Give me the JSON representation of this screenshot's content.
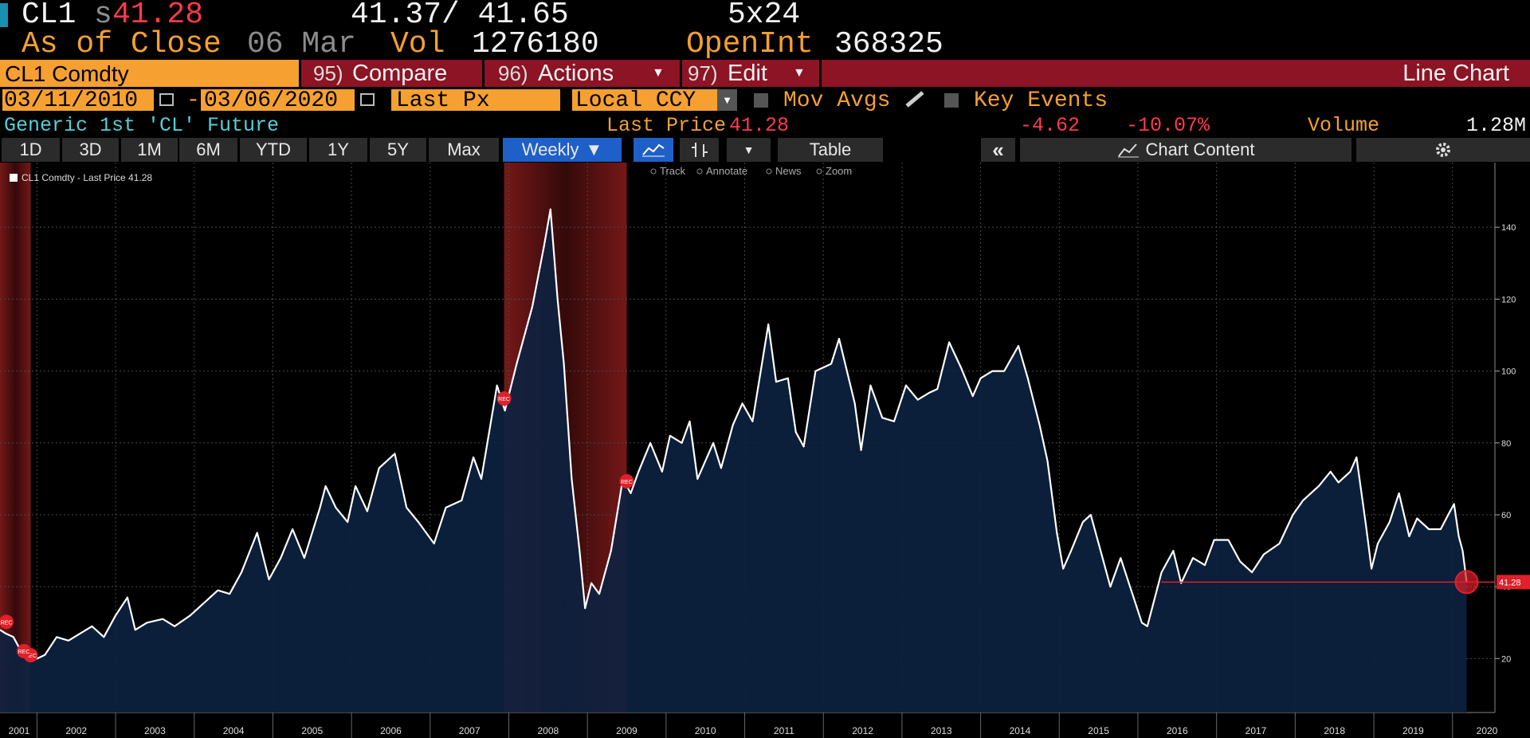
{
  "header": {
    "ticker": "CL1",
    "price_prefix": "s",
    "price": "41.28",
    "bid_ask": "41.37/ 41.65",
    "size": "5x24",
    "as_of": "As of Close",
    "date": "06 Mar",
    "vol_label": "Vol",
    "vol": "1276180",
    "oi_label": "OpenInt",
    "oi": "368325"
  },
  "toolbar": {
    "security": "CL1 Comdty",
    "buttons": [
      {
        "num": "95)",
        "label": "Compare"
      },
      {
        "num": "96)",
        "label": "Actions"
      },
      {
        "num": "97)",
        "label": "Edit"
      }
    ],
    "chart_type": "Line Chart"
  },
  "controls": {
    "start_date": "03/11/2010",
    "dash": "-",
    "end_date": "03/06/2020",
    "field": "Last Px",
    "currency": "Local CCY",
    "mov_avgs": "Mov Avgs",
    "key_events": "Key Events"
  },
  "info": {
    "description": "Generic 1st 'CL' Future",
    "last_price_label": "Last Price",
    "last_price": "41.28",
    "change": "-4.62",
    "change_pct": "-10.07%",
    "volume_label": "Volume",
    "volume": "1.28M"
  },
  "periods": [
    "1D",
    "3D",
    "1M",
    "6M",
    "YTD",
    "1Y",
    "5Y",
    "Max"
  ],
  "frequency": "Weekly",
  "table": "Table",
  "chart_content": "Chart Content",
  "chart_tools": [
    "Track",
    "Annotate",
    "News",
    "Zoom"
  ],
  "chart_data": {
    "type": "area-line",
    "xlim": [
      2001.53,
      2020.54
    ],
    "ylim": [
      5,
      158
    ],
    "xticks": [
      2001,
      2002,
      2003,
      2004,
      2005,
      2006,
      2007,
      2008,
      2009,
      2010,
      2011,
      2012,
      2013,
      2014,
      2015,
      2016,
      2017,
      2018,
      2019,
      2020
    ],
    "yticks": [
      20,
      40,
      60,
      80,
      100,
      120,
      140
    ],
    "grid": true,
    "area_color": "#0c2140",
    "recession_label": "REC",
    "recessions": [
      [
        2001.2,
        2001.92
      ],
      [
        2007.94,
        2009.5
      ]
    ],
    "reference_line": {
      "from": 2016.3,
      "value": 41.28,
      "color": "#e0202a"
    },
    "series": [
      {
        "name": "CL1 Comdty - Last Price 41.28",
        "color": "#ffffff",
        "x": [
          2001.53,
          2001.6,
          2001.7,
          2001.8,
          2001.9,
          2002.0,
          2002.1,
          2002.25,
          2002.4,
          2002.55,
          2002.7,
          2002.85,
          2003.0,
          2003.15,
          2003.25,
          2003.4,
          2003.6,
          2003.75,
          2003.95,
          2004.1,
          2004.3,
          2004.45,
          2004.6,
          2004.8,
          2004.95,
          2005.1,
          2005.25,
          2005.4,
          2005.6,
          2005.67,
          2005.8,
          2005.95,
          2006.05,
          2006.2,
          2006.35,
          2006.55,
          2006.7,
          2006.85,
          2007.05,
          2007.2,
          2007.4,
          2007.55,
          2007.65,
          2007.85,
          2007.95,
          2008.1,
          2008.3,
          2008.45,
          2008.53,
          2008.62,
          2008.7,
          2008.8,
          2008.9,
          2008.97,
          2009.05,
          2009.15,
          2009.3,
          2009.45,
          2009.55,
          2009.65,
          2009.8,
          2009.95,
          2010.05,
          2010.2,
          2010.3,
          2010.4,
          2010.6,
          2010.7,
          2010.85,
          2010.97,
          2011.1,
          2011.3,
          2011.4,
          2011.55,
          2011.65,
          2011.75,
          2011.9,
          2012.1,
          2012.2,
          2012.4,
          2012.48,
          2012.6,
          2012.75,
          2012.9,
          2013.05,
          2013.2,
          2013.35,
          2013.45,
          2013.6,
          2013.75,
          2013.9,
          2014.0,
          2014.15,
          2014.3,
          2014.48,
          2014.6,
          2014.75,
          2014.85,
          2014.97,
          2015.05,
          2015.15,
          2015.3,
          2015.4,
          2015.55,
          2015.65,
          2015.78,
          2015.9,
          2016.05,
          2016.12,
          2016.3,
          2016.45,
          2016.55,
          2016.7,
          2016.85,
          2016.97,
          2017.15,
          2017.3,
          2017.45,
          2017.6,
          2017.8,
          2017.97,
          2018.1,
          2018.3,
          2018.45,
          2018.55,
          2018.7,
          2018.78,
          2018.9,
          2018.97,
          2019.05,
          2019.2,
          2019.32,
          2019.45,
          2019.55,
          2019.7,
          2019.85,
          2019.97,
          2020.02,
          2020.08,
          2020.13,
          2020.18
        ],
        "values": [
          28,
          27,
          26,
          22,
          19.5,
          20,
          21,
          26,
          25,
          27,
          29,
          26,
          32,
          37,
          28,
          30,
          31,
          29,
          32,
          35,
          39,
          38,
          44,
          55,
          42,
          48,
          56,
          48,
          62,
          68,
          62,
          58,
          68,
          61,
          73,
          77,
          62,
          58,
          52,
          62,
          64,
          76,
          70,
          96,
          89,
          102,
          118,
          135,
          145,
          120,
          102,
          70,
          50,
          34,
          41,
          38,
          50,
          70,
          66,
          72,
          80,
          72,
          82,
          80,
          86,
          70,
          80,
          73,
          85,
          91,
          86,
          113,
          97,
          98,
          83,
          79,
          100,
          102,
          109,
          91,
          78,
          96,
          87,
          86,
          96,
          92,
          94,
          95,
          108,
          101,
          93,
          98,
          100,
          100,
          107,
          98,
          85,
          75,
          55,
          45,
          50,
          58,
          60,
          48,
          40,
          48,
          40,
          30,
          29,
          44,
          50,
          41,
          48,
          46,
          53,
          53,
          47,
          44,
          49,
          52,
          60,
          64,
          68,
          72,
          69,
          72,
          76,
          57,
          45,
          52,
          58,
          66,
          54,
          59,
          56,
          56,
          61,
          63,
          54,
          50,
          41.28
        ]
      }
    ]
  }
}
